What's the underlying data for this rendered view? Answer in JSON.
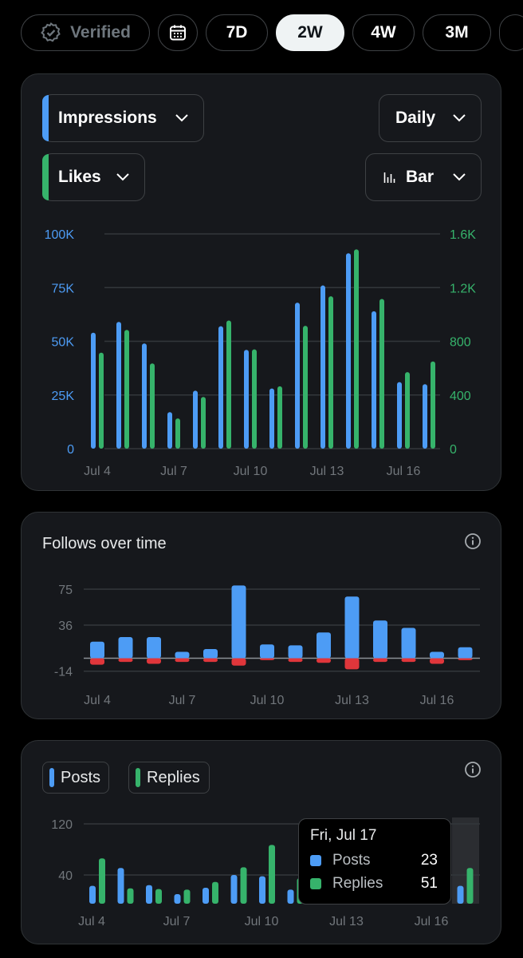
{
  "topbar": {
    "verified_label": "Verified",
    "periods": [
      "7D",
      "2W",
      "4W",
      "3M"
    ],
    "active_period": "2W"
  },
  "colors": {
    "blue": "#4d9cf5",
    "green": "#36b36b",
    "red": "#e0363b",
    "grid": "#33373b",
    "axis_text": "#71767b"
  },
  "card1": {
    "metric_primary": "Impressions",
    "metric_secondary": "Likes",
    "interval": "Daily",
    "chart_type_label": "Bar"
  },
  "card2": {
    "title": "Follows over time"
  },
  "card3": {
    "legend_posts": "Posts",
    "legend_replies": "Replies",
    "tooltip": {
      "date": "Fri, Jul 17",
      "posts_label": "Posts",
      "posts_value": "23",
      "replies_label": "Replies",
      "replies_value": "51"
    }
  },
  "chart_data": [
    {
      "type": "bar",
      "name": "impressions-likes",
      "categories": [
        "Jul 4",
        "Jul 5",
        "Jul 6",
        "Jul 7",
        "Jul 8",
        "Jul 9",
        "Jul 10",
        "Jul 11",
        "Jul 12",
        "Jul 13",
        "Jul 14",
        "Jul 15",
        "Jul 16",
        "Jul 17"
      ],
      "x_tick_labels": [
        "Jul 4",
        "Jul 7",
        "Jul 10",
        "Jul 13",
        "Jul 16"
      ],
      "left_axis": {
        "ticks": [
          "100K",
          "75K",
          "50K",
          "25K",
          "0"
        ],
        "ylim": [
          0,
          100000
        ]
      },
      "right_axis": {
        "ticks": [
          "1.6K",
          "1.2K",
          "800",
          "400",
          "0"
        ],
        "ylim": [
          0,
          1600
        ]
      },
      "series": [
        {
          "name": "Impressions",
          "axis": "left",
          "values": [
            54000,
            59000,
            49000,
            17000,
            27000,
            57000,
            46000,
            28000,
            68000,
            76000,
            91000,
            64000,
            31000,
            30000
          ]
        },
        {
          "name": "Likes",
          "axis": "right",
          "values": [
            715,
            885,
            635,
            225,
            385,
            955,
            740,
            465,
            915,
            1135,
            1485,
            1115,
            570,
            650
          ]
        }
      ]
    },
    {
      "type": "bar",
      "name": "follows",
      "categories": [
        "Jul 4",
        "Jul 5",
        "Jul 6",
        "Jul 7",
        "Jul 8",
        "Jul 9",
        "Jul 10",
        "Jul 11",
        "Jul 12",
        "Jul 13",
        "Jul 14",
        "Jul 15",
        "Jul 16",
        "Jul 17"
      ],
      "x_tick_labels": [
        "Jul 4",
        "Jul 7",
        "Jul 10",
        "Jul 13",
        "Jul 16"
      ],
      "y_ticks": [
        "75",
        "36",
        "-14"
      ],
      "ylim": [
        -14,
        75
      ],
      "series": [
        {
          "name": "Follows",
          "values": [
            18,
            23,
            23,
            7,
            10,
            79,
            15,
            14,
            28,
            67,
            41,
            33,
            7,
            12
          ]
        },
        {
          "name": "Unfollows",
          "values": [
            -7,
            -4,
            -6,
            -4,
            -4,
            -8,
            -2,
            -4,
            -5,
            -12,
            -4,
            -4,
            -6,
            -2
          ]
        }
      ]
    },
    {
      "type": "bar",
      "name": "posts-replies",
      "categories": [
        "Jul 4",
        "Jul 5",
        "Jul 6",
        "Jul 7",
        "Jul 8",
        "Jul 9",
        "Jul 10",
        "Jul 11",
        "Jul 12",
        "Jul 13",
        "Jul 14",
        "Jul 15",
        "Jul 16",
        "Jul 17"
      ],
      "x_tick_labels": [
        "Jul 4",
        "Jul 7",
        "Jul 10",
        "Jul 13",
        "Jul 16"
      ],
      "y_ticks": [
        "120",
        "40"
      ],
      "ylim": [
        0,
        120
      ],
      "highlight_index": 13,
      "series": [
        {
          "name": "Posts",
          "values": [
            23,
            51,
            24,
            10,
            20,
            40,
            38,
            17,
            12,
            13,
            11,
            12,
            12,
            23
          ]
        },
        {
          "name": "Replies",
          "values": [
            66,
            19,
            18,
            17,
            29,
            52,
            87,
            35,
            20,
            22,
            18,
            14,
            14,
            51
          ]
        }
      ]
    }
  ]
}
